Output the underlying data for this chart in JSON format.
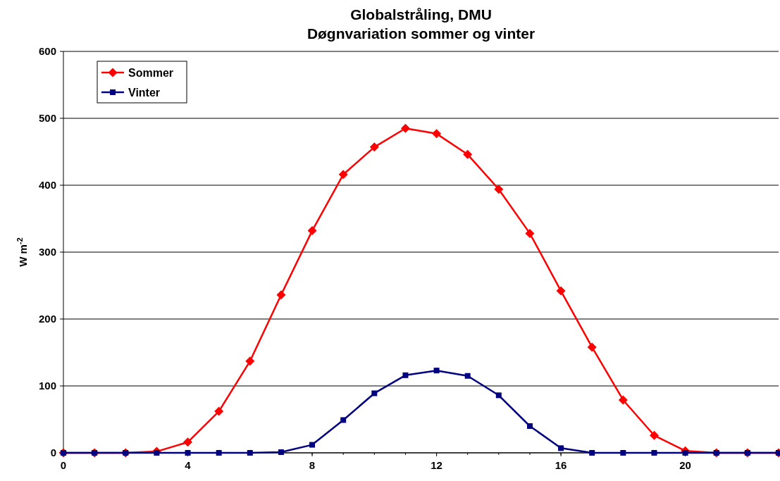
{
  "chart_data": {
    "type": "line",
    "title": "Globalstråling, DMU",
    "subtitle": "Døgnvariation sommer og vinter",
    "ylabel": "W m$^{-2}$",
    "x": [
      0,
      1,
      2,
      3,
      4,
      5,
      6,
      7,
      8,
      9,
      10,
      11,
      12,
      13,
      14,
      15,
      16,
      17,
      18,
      19,
      20,
      21,
      22,
      23
    ],
    "series": [
      {
        "name": "Sommer",
        "color": "#ff0000",
        "marker": "diamond",
        "values": [
          0,
          0,
          0,
          2,
          16,
          62,
          137,
          236,
          332,
          416,
          457,
          485,
          477,
          446,
          394,
          328,
          242,
          158,
          79,
          26,
          3,
          0,
          0,
          0
        ]
      },
      {
        "name": "Vinter",
        "color": "#000080",
        "marker": "square",
        "values": [
          0,
          0,
          0,
          0,
          0,
          0,
          0,
          1,
          12,
          49,
          89,
          116,
          123,
          115,
          86,
          40,
          7,
          0,
          0,
          0,
          0,
          0,
          0,
          0
        ]
      }
    ],
    "xlim": [
      0,
      23
    ],
    "xticks": [
      0,
      4,
      8,
      12,
      16,
      20
    ],
    "ylim": [
      0,
      600
    ],
    "yticks": [
      0,
      100,
      200,
      300,
      400,
      500,
      600
    ],
    "grid": "y",
    "legend": "top left",
    "line_style": "solid"
  }
}
